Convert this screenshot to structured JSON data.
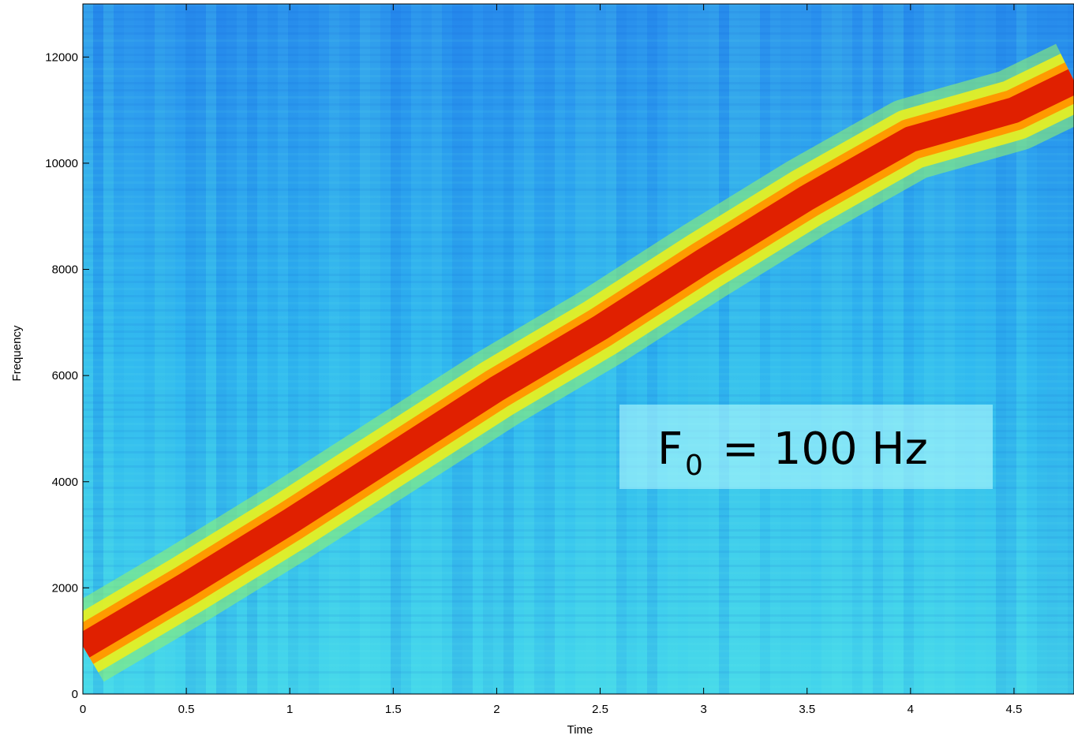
{
  "chart_data": {
    "type": "spectrogram",
    "x_label": "Time",
    "y_label": "Frequency",
    "x": [
      0,
      0.5,
      1,
      1.5,
      2,
      2.5,
      3,
      3.5,
      4,
      4.5,
      4.79
    ],
    "series": [
      {
        "color": "#e02000",
        "values": [
          900,
          2050,
          3250,
          4500,
          5750,
          6900,
          8150,
          9350,
          10450,
          11000,
          11550
        ]
      }
    ],
    "xlim": [
      0,
      4.79
    ],
    "ylim": [
      0,
      13000
    ],
    "xticks": [
      0,
      0.5,
      1,
      1.5,
      2,
      2.5,
      3,
      3.5,
      4,
      4.5
    ],
    "yticks": [
      0,
      2000,
      4000,
      6000,
      8000,
      10000,
      12000
    ],
    "annotation": {
      "base": "F",
      "sub": "0",
      "text": "= 100 Hz"
    }
  }
}
